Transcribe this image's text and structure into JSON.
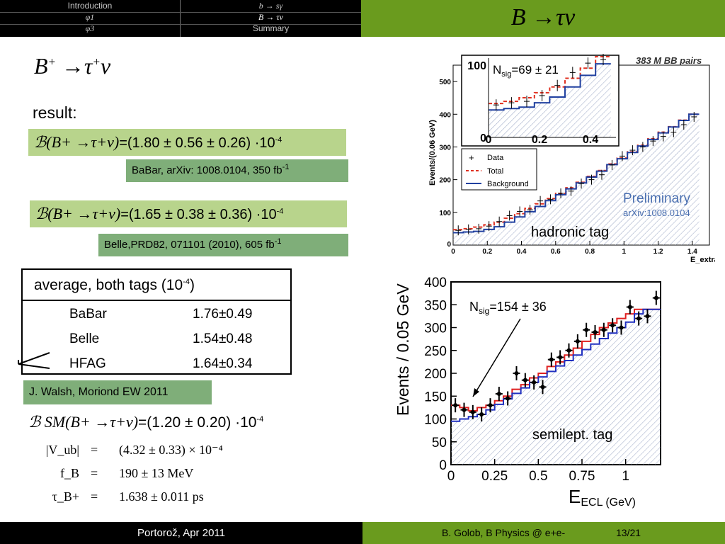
{
  "nav": {
    "left_col": [
      "Introduction",
      "φ1",
      "φ3"
    ],
    "right_col": [
      "b → sγ",
      "B → τν",
      "Summary"
    ],
    "current": "B → τν"
  },
  "frame_title": "B →τν",
  "heading": {
    "base": "B",
    "sup": "+",
    "rest": " →τ",
    "sup2": "+",
    "end": "ν"
  },
  "result_label": "result:",
  "babar": {
    "formula": "ℬ(B+ →τ+ν)",
    "value": "=(1.80 ± 0.56 ± 0.26) ·10",
    "exp": "-4",
    "ref": "BaBar, arXiv: 1008.0104, 350 fb",
    "ref_exp": "-1"
  },
  "belle": {
    "formula": "ℬ(B+ →τ+ν)",
    "value": "=(1.65 ± 0.38 ± 0.36) ·10",
    "exp": "-4",
    "ref": "Belle,PRD82, 071101 (2010), 605 fb",
    "ref_exp": "-1"
  },
  "average": {
    "title": "average, both tags (10",
    "title_exp": "-4",
    "title_end": ")",
    "rows": [
      {
        "name": "BaBar",
        "value": "1.76±0.49"
      },
      {
        "name": "Belle",
        "value": "1.54±0.48"
      },
      {
        "name": "HFAG",
        "value": "1.64±0.34"
      }
    ],
    "source": "J. Walsh, Moriond EW 2011"
  },
  "sm": {
    "formula": "ℬ SM(B+ →τ+ν)",
    "value": "=(1.20 ± 0.20) ·10",
    "exp": "-4"
  },
  "equations": [
    {
      "lhs": "|V_ub|",
      "rhs": "(4.32 ± 0.33) × 10⁻⁴"
    },
    {
      "lhs": "f_B",
      "rhs": "190 ± 13 MeV"
    },
    {
      "lhs": "τ_B+",
      "rhs": "1.638 ± 0.011 ps"
    }
  ],
  "footer": {
    "left": "Portorož,  Apr 2011",
    "right": "B. Golob, B Physics @ e+e-",
    "page": "13/21"
  },
  "colors": {
    "accent_green": "#6a9b1e",
    "box_light": "#b8d48c",
    "box_dark": "#7fae79"
  },
  "chart_data": [
    {
      "type": "line",
      "title": "383 M BB pairs",
      "xlabel": "E_extra (GeV)",
      "ylabel": "Events/(0.06 GeV)",
      "xlim": [
        0,
        1.5
      ],
      "ylim": [
        0,
        550
      ],
      "xticks": [
        "0",
        "0.2",
        "0.4",
        "0.6",
        "0.8",
        "1",
        "1.2",
        "1.4"
      ],
      "yticks": [
        "100",
        "200",
        "300",
        "400",
        "500"
      ],
      "legend": [
        "Data",
        "Total",
        "Background"
      ],
      "annotations": [
        "Preliminary",
        "arXiv:1008.0104",
        "hadronic tag"
      ],
      "nsig_label": "N",
      "nsig_sub": "sig",
      "nsig_value": "=69 ± 21",
      "x": [
        0.03,
        0.09,
        0.15,
        0.21,
        0.27,
        0.33,
        0.39,
        0.45,
        0.51,
        0.57,
        0.63,
        0.69,
        0.75,
        0.81,
        0.87,
        0.93,
        0.99,
        1.05,
        1.11,
        1.17,
        1.23,
        1.29,
        1.35,
        1.41
      ],
      "series": [
        {
          "name": "Data",
          "values": [
            45,
            48,
            50,
            58,
            72,
            90,
            103,
            108,
            135,
            140,
            158,
            165,
            188,
            200,
            215,
            245,
            272,
            290,
            300,
            318,
            332,
            345,
            368,
            392
          ]
        },
        {
          "name": "Total",
          "values": [
            47,
            50,
            55,
            62,
            70,
            82,
            96,
            112,
            126,
            142,
            158,
            175,
            192,
            210,
            228,
            248,
            266,
            285,
            305,
            325,
            345,
            362,
            382,
            400
          ]
        },
        {
          "name": "Background",
          "values": [
            38,
            40,
            42,
            48,
            56,
            70,
            86,
            102,
            118,
            136,
            154,
            172,
            190,
            208,
            226,
            246,
            264,
            283,
            303,
            323,
            343,
            361,
            381,
            400
          ]
        }
      ],
      "inset": {
        "xticks": [
          "0",
          "0.2",
          "0.4"
        ],
        "yticks": [
          "0",
          "100"
        ],
        "xlim": [
          0,
          0.5
        ],
        "ylim": [
          0,
          110
        ]
      }
    },
    {
      "type": "line",
      "xlabel": "E",
      "xlabel_sub": "ECL (GeV)",
      "ylabel": "Events / 0.05 GeV",
      "xlim": [
        0,
        1.2
      ],
      "ylim": [
        0,
        400
      ],
      "xticks": [
        "0",
        "0.25",
        "0.5",
        "0.75",
        "1"
      ],
      "yticks": [
        "0",
        "50",
        "100",
        "150",
        "200",
        "250",
        "300",
        "350",
        "400"
      ],
      "annotations": [
        "semilept. tag"
      ],
      "nsig_label": "N",
      "nsig_sub": "sig",
      "nsig_value": "=154 ± 36",
      "x": [
        0.025,
        0.075,
        0.125,
        0.175,
        0.225,
        0.275,
        0.325,
        0.375,
        0.425,
        0.475,
        0.525,
        0.575,
        0.625,
        0.675,
        0.725,
        0.775,
        0.825,
        0.875,
        0.925,
        0.975,
        1.025,
        1.075,
        1.125,
        1.175
      ],
      "series": [
        {
          "name": "Data",
          "values": [
            130,
            120,
            115,
            110,
            130,
            155,
            145,
            200,
            185,
            180,
            170,
            230,
            235,
            250,
            270,
            295,
            290,
            295,
            305,
            300,
            345,
            320,
            325,
            365
          ]
        },
        {
          "name": "Total",
          "values": [
            130,
            125,
            118,
            125,
            130,
            140,
            150,
            165,
            175,
            190,
            200,
            215,
            225,
            240,
            255,
            270,
            285,
            300,
            310,
            320,
            330,
            340,
            340,
            340
          ]
        },
        {
          "name": "Background",
          "values": [
            95,
            100,
            105,
            110,
            120,
            132,
            144,
            156,
            168,
            180,
            192,
            204,
            216,
            228,
            240,
            252,
            264,
            276,
            288,
            300,
            312,
            330,
            340,
            340
          ]
        }
      ]
    }
  ]
}
